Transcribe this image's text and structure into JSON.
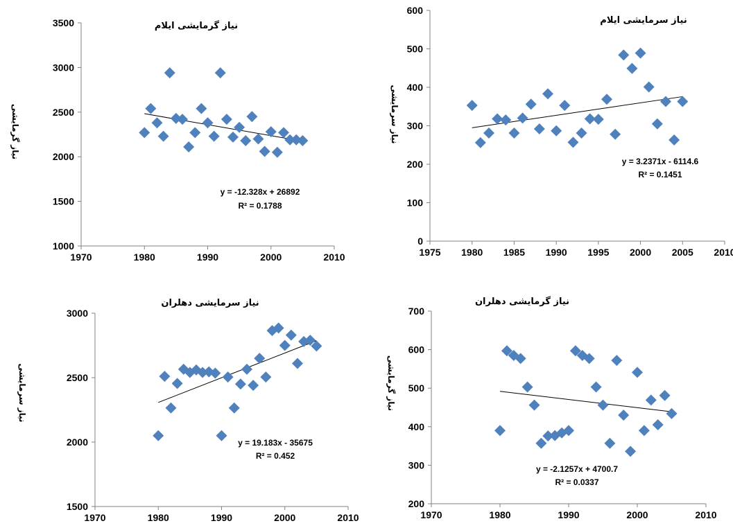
{
  "marker_color": "#4F81BD",
  "axis_color": "#808080",
  "trend_color": "#000000",
  "chart_data": [
    {
      "type": "scatter",
      "title": "نیاز گرمایشی ایلام",
      "ylabel": "نیاز گرمایشی",
      "xlabel": "",
      "xlim": [
        1970,
        2010
      ],
      "ylim": [
        1000,
        3500
      ],
      "xticks": [
        "1970",
        "1980",
        "1990",
        "2000",
        "2010"
      ],
      "yticks": [
        "1000",
        "1500",
        "2000",
        "2500",
        "3000",
        "3500"
      ],
      "x": [
        1980,
        1981,
        1982,
        1983,
        1984,
        1985,
        1986,
        1987,
        1988,
        1989,
        1990,
        1991,
        1992,
        1993,
        1994,
        1995,
        1996,
        1997,
        1998,
        1999,
        2000,
        2001,
        2002,
        2003,
        2004,
        2005
      ],
      "y": [
        2270,
        2540,
        2380,
        2230,
        2940,
        2430,
        2420,
        2110,
        2270,
        2540,
        2380,
        2230,
        2940,
        2420,
        2220,
        2330,
        2180,
        2450,
        2200,
        2060,
        2280,
        2050,
        2270,
        2190,
        2190,
        2180
      ],
      "trendline": {
        "slope": -12.328,
        "intercept": 26892
      },
      "equation": "y = -12.328x + 26892",
      "r2": "R² = 0.1788"
    },
    {
      "type": "scatter",
      "title": "نیاز سرمایشی ایلام",
      "ylabel": "نیاز سرمایشی",
      "xlabel": "",
      "xlim": [
        1975,
        2010
      ],
      "ylim": [
        0,
        600
      ],
      "xticks": [
        "1975",
        "1980",
        "1985",
        "1990",
        "1995",
        "2000",
        "2005",
        "2010"
      ],
      "yticks": [
        "0",
        "100",
        "200",
        "300",
        "400",
        "500",
        "600"
      ],
      "x": [
        1980,
        1981,
        1982,
        1983,
        1984,
        1985,
        1986,
        1987,
        1988,
        1989,
        1990,
        1991,
        1992,
        1993,
        1994,
        1995,
        1996,
        1997,
        1998,
        1999,
        2000,
        2001,
        2002,
        2003,
        2004,
        2005
      ],
      "y": [
        353,
        256,
        281,
        318,
        315,
        281,
        320,
        356,
        292,
        383,
        287,
        353,
        257,
        281,
        318,
        317,
        369,
        278,
        484,
        449,
        489,
        401,
        305,
        363,
        263,
        363
      ],
      "trendline": {
        "slope": 3.2371,
        "intercept": -6114.6
      },
      "equation": "y = 3.2371x - 6114.6",
      "r2": "R² = 0.1451"
    },
    {
      "type": "scatter",
      "title": "نیاز سرمایشی دهلران",
      "ylabel": "نیاز سرمایشی",
      "xlabel": "",
      "xlim": [
        1970,
        2010
      ],
      "ylim": [
        1500,
        3000
      ],
      "xticks": [
        "1970",
        "1980",
        "1990",
        "2000",
        "2010"
      ],
      "yticks": [
        "1500",
        "2000",
        "2500",
        "3000"
      ],
      "x": [
        1980,
        1981,
        1982,
        1983,
        1984,
        1985,
        1986,
        1987,
        1988,
        1989,
        1990,
        1991,
        1992,
        1993,
        1994,
        1995,
        1996,
        1997,
        1998,
        1999,
        2000,
        2001,
        2002,
        2003,
        2004,
        2005
      ],
      "y": [
        2050,
        2510,
        2265,
        2455,
        2565,
        2540,
        2560,
        2540,
        2545,
        2535,
        2050,
        2505,
        2265,
        2450,
        2565,
        2440,
        2650,
        2505,
        2865,
        2885,
        2750,
        2830,
        2610,
        2780,
        2790,
        2745
      ],
      "trendline": {
        "slope": 19.183,
        "intercept": -35675
      },
      "equation": "y = 19.183x - 35675",
      "r2": "R² = 0.452"
    },
    {
      "type": "scatter",
      "title": "نیاز گرمایشی دهلران",
      "ylabel": "نیاز گرمایشی",
      "xlabel": "",
      "xlim": [
        1970,
        2010
      ],
      "ylim": [
        200,
        700
      ],
      "xticks": [
        "1970",
        "1980",
        "1990",
        "2000",
        "2010"
      ],
      "yticks": [
        "200",
        "300",
        "400",
        "500",
        "600",
        "700"
      ],
      "x": [
        1980,
        1981,
        1982,
        1983,
        1984,
        1985,
        1986,
        1987,
        1988,
        1989,
        1990,
        1991,
        1992,
        1993,
        1994,
        1995,
        1996,
        1997,
        1998,
        1999,
        2000,
        2001,
        2002,
        2003,
        2004,
        2005
      ],
      "y": [
        390,
        597,
        585,
        577,
        503,
        456,
        357,
        376,
        377,
        384,
        390,
        597,
        585,
        577,
        503,
        456,
        357,
        572,
        430,
        336,
        541,
        390,
        469,
        405,
        481,
        434
      ],
      "trendline": {
        "slope": -2.1257,
        "intercept": 4700.7
      },
      "equation": "y = -2.1257x + 4700.7",
      "r2": "R² = 0.0337"
    }
  ]
}
